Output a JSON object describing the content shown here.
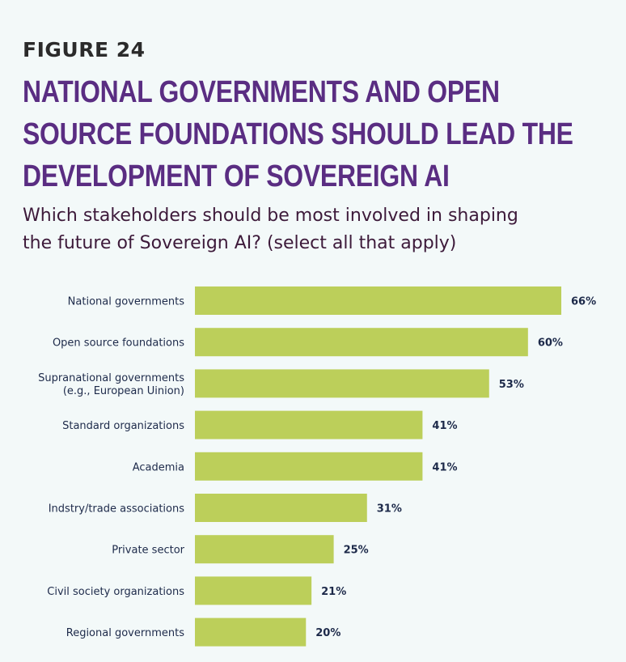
{
  "figure_label": "FIGURE 24",
  "title_lines": [
    "NATIONAL GOVERNMENTS AND OPEN",
    "SOURCE FOUNDATIONS SHOULD LEAD THE",
    "DEVELOPMENT OF SOVEREIGN AI"
  ],
  "subtitle_lines": [
    "Which stakeholders should be most involved in shaping",
    "the future of Sovereign AI? (select all that apply)"
  ],
  "colors": {
    "bar": "#bccf5a",
    "title": "#5a2d82",
    "text": "#1d2a4a",
    "background": "#f3f9f9"
  },
  "chart_data": {
    "type": "bar",
    "orientation": "horizontal",
    "categories": [
      [
        "National governments"
      ],
      [
        "Open source foundations"
      ],
      [
        "Supranational governments",
        "(e.g., European Uinion)"
      ],
      [
        "Standard organizations"
      ],
      [
        "Academia"
      ],
      [
        "Indstry/trade associations"
      ],
      [
        "Private sector"
      ],
      [
        "Civil society organizations"
      ],
      [
        "Regional governments"
      ]
    ],
    "values": [
      66,
      60,
      53,
      41,
      41,
      31,
      25,
      21,
      20
    ],
    "value_labels": [
      "66%",
      "60%",
      "53%",
      "41%",
      "41%",
      "31%",
      "25%",
      "21%",
      "20%"
    ],
    "xlim": [
      0,
      66
    ],
    "grid": false,
    "legend": "none"
  }
}
